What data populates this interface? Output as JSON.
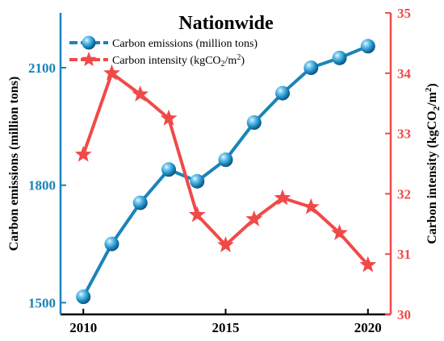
{
  "chart_data": {
    "type": "line",
    "title": "Nationwide",
    "x": [
      2010,
      2011,
      2012,
      2013,
      2014,
      2015,
      2016,
      2017,
      2018,
      2019,
      2020
    ],
    "x_ticks": [
      "2010",
      "2015",
      "2020"
    ],
    "xlim": [
      2009.2,
      2020.8
    ],
    "left_axis": {
      "label": "Carbon emissions (million tons)",
      "ylim": [
        1470,
        2240
      ],
      "ticks": [
        "1500",
        "1800",
        "2100"
      ],
      "color": "#1a84b8"
    },
    "right_axis": {
      "label_parts": [
        "Carbon intensity  (kgCO",
        "2",
        "/m",
        "2",
        ")"
      ],
      "ylim": [
        30,
        35
      ],
      "ticks": [
        "30",
        "31",
        "32",
        "33",
        "34",
        "35"
      ],
      "color": "#f04a48"
    },
    "series": [
      {
        "name": "Carbon emissions (million tons)",
        "axis": "left",
        "marker": "sphere",
        "color": "#1a84b8",
        "values": [
          1515,
          1650,
          1755,
          1840,
          1810,
          1865,
          1960,
          2035,
          2100,
          2125,
          2155
        ]
      },
      {
        "name_parts": [
          "Carbon intensity  (kgCO",
          "2",
          "/m",
          "2",
          ")"
        ],
        "axis": "right",
        "marker": "star",
        "color": "#f04a48",
        "values": [
          32.65,
          34.0,
          33.65,
          33.25,
          31.65,
          31.15,
          31.58,
          31.93,
          31.78,
          31.35,
          30.82
        ]
      }
    ],
    "legend": "top-left",
    "grid": false
  }
}
